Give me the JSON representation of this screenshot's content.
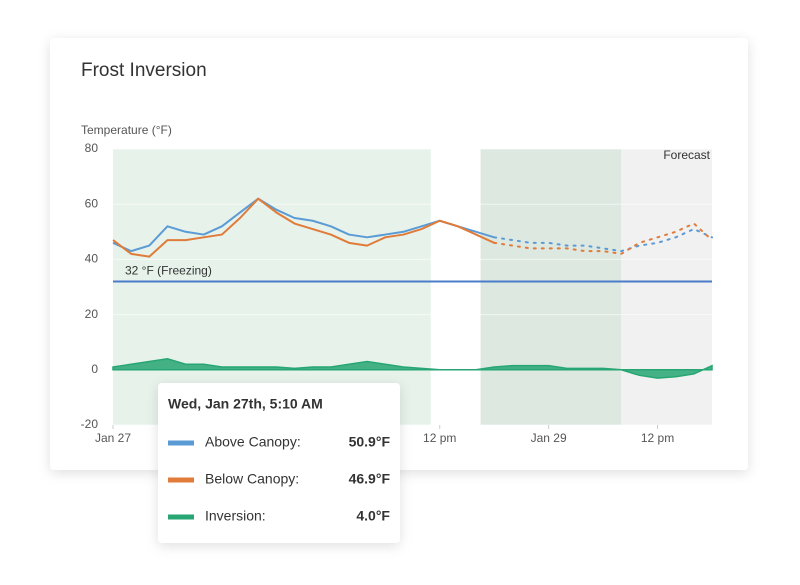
{
  "chart_data": {
    "type": "line",
    "title": "Frost Inversion",
    "y_label": "Temperature (°F)",
    "xlim": [
      0,
      66
    ],
    "xticks": [
      {
        "value": 0,
        "label": "Jan 27"
      },
      {
        "value": 36,
        "label": "12 pm"
      },
      {
        "value": 48,
        "label": "Jan 29"
      },
      {
        "value": 60,
        "label": "12 pm"
      }
    ],
    "ylim": [
      -20,
      80
    ],
    "yticks": [
      -20,
      0,
      20,
      40,
      60,
      80
    ],
    "grid": true,
    "forecast_from": 42,
    "regions": [
      {
        "from": 0,
        "to": 35,
        "color": "#e6f2ea"
      },
      {
        "from": 40.5,
        "to": 56,
        "color": "#dde8e1"
      },
      {
        "from": 56,
        "to": 66,
        "color": "#f1f1f1",
        "label": "Forecast"
      }
    ],
    "annotation": {
      "value": 32,
      "label": "32 °F (Freezing)",
      "color": "#4a7cc9"
    },
    "x": [
      0,
      2,
      4,
      6,
      8,
      10,
      12,
      14,
      16,
      18,
      20,
      22,
      24,
      26,
      28,
      30,
      32,
      34,
      36,
      38,
      40,
      42,
      44,
      46,
      48,
      50,
      52,
      54,
      56,
      58,
      60,
      62,
      64,
      66
    ],
    "series": [
      {
        "name": "Above Canopy:",
        "color": "#5b9bd5",
        "values": [
          46,
          43,
          45,
          52,
          50,
          49,
          52,
          57,
          62,
          58,
          55,
          54,
          52,
          49,
          48,
          49,
          50,
          52,
          54,
          52,
          50,
          48,
          47,
          46,
          46,
          45,
          45,
          44,
          43,
          45,
          46,
          48,
          51,
          48
        ]
      },
      {
        "name": "Below Canopy:",
        "color": "#e07b39",
        "values": [
          47,
          42,
          41,
          47,
          47,
          48,
          49,
          55,
          62,
          57,
          53,
          51,
          49,
          46,
          45,
          48,
          49,
          51,
          54,
          52,
          49,
          46,
          45,
          44,
          44,
          44,
          43,
          43,
          42,
          46,
          48,
          50,
          53,
          47
        ]
      },
      {
        "name": "Inversion:",
        "color": "#27a673",
        "area": true,
        "values": [
          1,
          2,
          3,
          4,
          2,
          2,
          1,
          1,
          1,
          1,
          0.5,
          1,
          1,
          2,
          3,
          2,
          1,
          0.5,
          0,
          0,
          0,
          1,
          1.5,
          1.5,
          1.5,
          0.5,
          0.5,
          0.5,
          0,
          -2,
          -3,
          -2.5,
          -1.5,
          1.5
        ]
      }
    ],
    "tooltip": {
      "title": "Wed, Jan 27th, 5:10 AM",
      "values": [
        50.9,
        46.9,
        4.0
      ],
      "value_labels": [
        "50.9°F",
        "46.9°F",
        "4.0°F"
      ]
    }
  }
}
